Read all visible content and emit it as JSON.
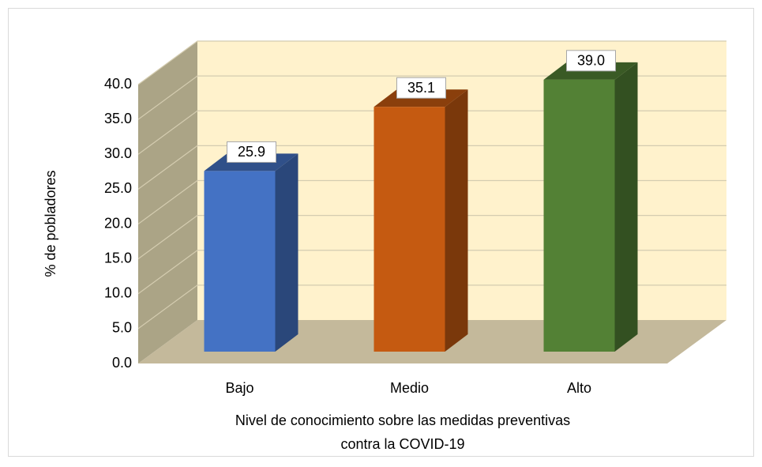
{
  "chart_data": {
    "type": "bar3d",
    "categories": [
      "Bajo",
      "Medio",
      "Alto"
    ],
    "values": [
      25.9,
      35.1,
      39.0
    ],
    "value_labels": [
      "25.9",
      "35.1",
      "39.0"
    ],
    "colors": [
      "#4472c4",
      "#c55a11",
      "#538135"
    ],
    "y_label": "% de pobladores",
    "x_label": [
      "Nivel de conocimiento sobre las medidas preventivas",
      "contra la COVID-19"
    ],
    "ylim": [
      0,
      40
    ],
    "yticks": [
      {
        "value": 0,
        "label": "0.0"
      },
      {
        "value": 5,
        "label": "5.0"
      },
      {
        "value": 10,
        "label": "10.0"
      },
      {
        "value": 15,
        "label": "15.0"
      },
      {
        "value": 20,
        "label": "20.0"
      },
      {
        "value": 25,
        "label": "25.0"
      },
      {
        "value": 30,
        "label": "30.0"
      },
      {
        "value": 35,
        "label": "35.0"
      },
      {
        "value": 40,
        "label": "40.0"
      }
    ],
    "grid": true
  }
}
